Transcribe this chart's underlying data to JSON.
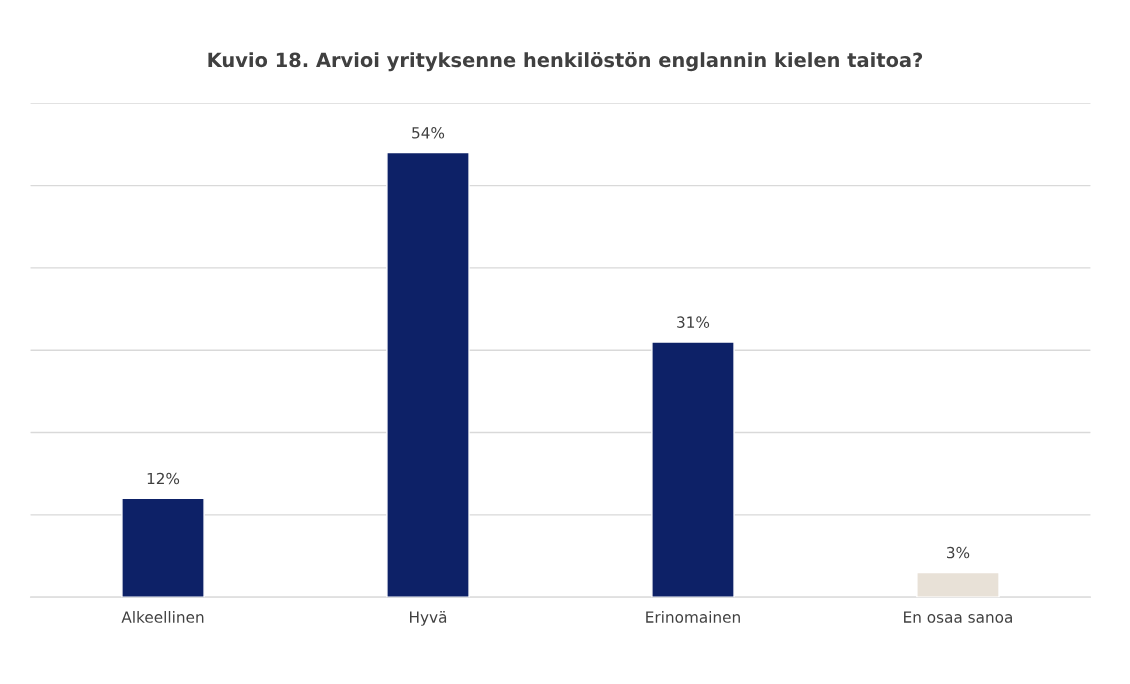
{
  "chart_data": {
    "type": "bar",
    "title": "Kuvio 18. Arvioi yrityksenne henkilöstön englannin kielen taitoa?",
    "categories": [
      "Alkeellinen",
      "Hyvä",
      "Erinomainen",
      "En osaa sanoa"
    ],
    "values": [
      12,
      54,
      31,
      3
    ],
    "colors": [
      "#0d2167",
      "#0d2167",
      "#0d2167",
      "#e8e1d7"
    ],
    "value_labels": [
      "12%",
      "54%",
      "31%",
      "3%"
    ],
    "ylim": [
      0,
      60
    ],
    "yticks": [
      {
        "value": 0,
        "label": null
      },
      {
        "value": 10,
        "label": null
      },
      {
        "value": 20,
        "label": null
      },
      {
        "value": 30,
        "label": null
      },
      {
        "value": 40,
        "label": null
      },
      {
        "value": 50,
        "label": null
      },
      {
        "value": 60,
        "label": null
      }
    ],
    "grid": "y",
    "tick_labels": "x",
    "legend": false
  }
}
